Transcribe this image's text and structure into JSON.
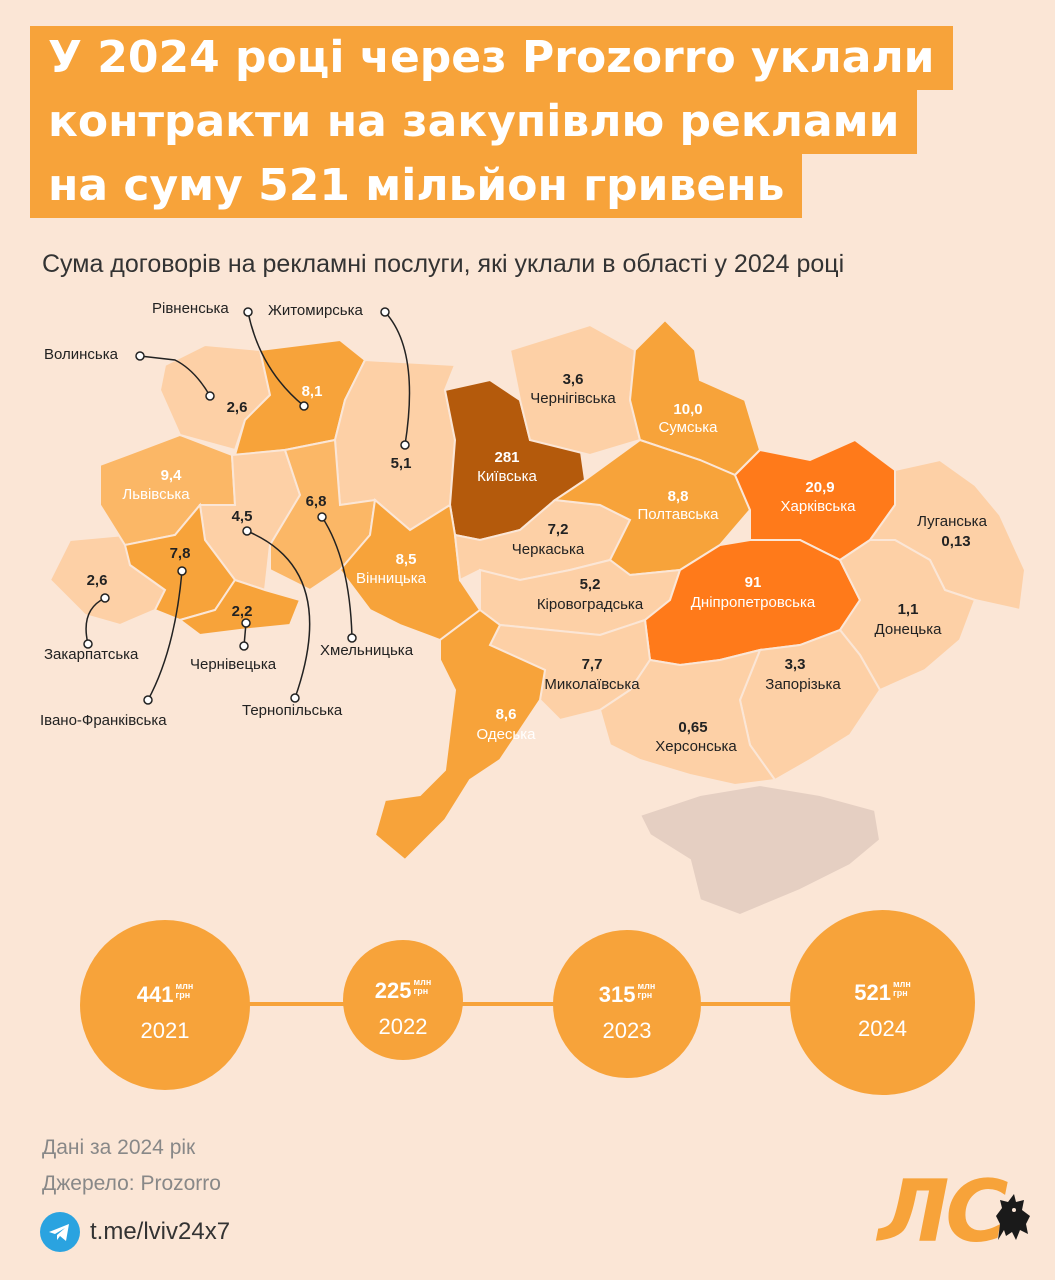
{
  "headline": {
    "line1": "У 2024 році через Prozorro уклали",
    "line2": "контракти на закупівлю реклами",
    "line3": "на суму 521 мільйон гривень"
  },
  "subtitle": "Сума договорів на рекламні послуги, які уклали в області у 2024 році",
  "map_data": {
    "unit": "млн грн",
    "colors": {
      "very_light": "#fdd0a6",
      "light": "#fbb766",
      "medium": "#f7a33a",
      "strong": "#ff7a1a",
      "dark": "#b45a0c",
      "occupied": "#e5cfc2"
    },
    "regions": [
      {
        "name": "Волинська",
        "value": "2,6"
      },
      {
        "name": "Рівненська",
        "value": "8,1"
      },
      {
        "name": "Житомирська",
        "value": "5,1"
      },
      {
        "name": "Київська",
        "value": "281"
      },
      {
        "name": "Чернігівська",
        "value": "3,6"
      },
      {
        "name": "Сумська",
        "value": "10,0"
      },
      {
        "name": "Львівська",
        "value": "9,4"
      },
      {
        "name": "Тернопільська",
        "value": "4,5"
      },
      {
        "name": "Хмельницька",
        "value": "6,8"
      },
      {
        "name": "Вінницька",
        "value": "8,5"
      },
      {
        "name": "Черкаська",
        "value": "7,2"
      },
      {
        "name": "Полтавська",
        "value": "8,8"
      },
      {
        "name": "Харківська",
        "value": "20,9"
      },
      {
        "name": "Луганська",
        "value": "0,13"
      },
      {
        "name": "Закарпатська",
        "value": "2,6"
      },
      {
        "name": "Івано-Франківська",
        "value": "7,8"
      },
      {
        "name": "Чернівецька",
        "value": "2,2"
      },
      {
        "name": "Кіровоградська",
        "value": "5,2"
      },
      {
        "name": "Дніпропетровська",
        "value": "91"
      },
      {
        "name": "Донецька",
        "value": "1,1"
      },
      {
        "name": "Миколаївська",
        "value": "7,7"
      },
      {
        "name": "Запорізька",
        "value": "3,3"
      },
      {
        "name": "Одеська",
        "value": "8,6"
      },
      {
        "name": "Херсонська",
        "value": "0,65"
      }
    ]
  },
  "timeline": [
    {
      "value": "441",
      "unit_top": "млн",
      "unit_bottom": "грн",
      "year": "2021"
    },
    {
      "value": "225",
      "unit_top": "млн",
      "unit_bottom": "грн",
      "year": "2022"
    },
    {
      "value": "315",
      "unit_top": "млн",
      "unit_bottom": "грн",
      "year": "2023"
    },
    {
      "value": "521",
      "unit_top": "млн",
      "unit_bottom": "грн",
      "year": "2024"
    }
  ],
  "footer": {
    "data_note": "Дані за 2024 рік",
    "source": "Джерело: Prozorro",
    "link": "t.me/lviv24x7"
  },
  "logo": "ЛС"
}
